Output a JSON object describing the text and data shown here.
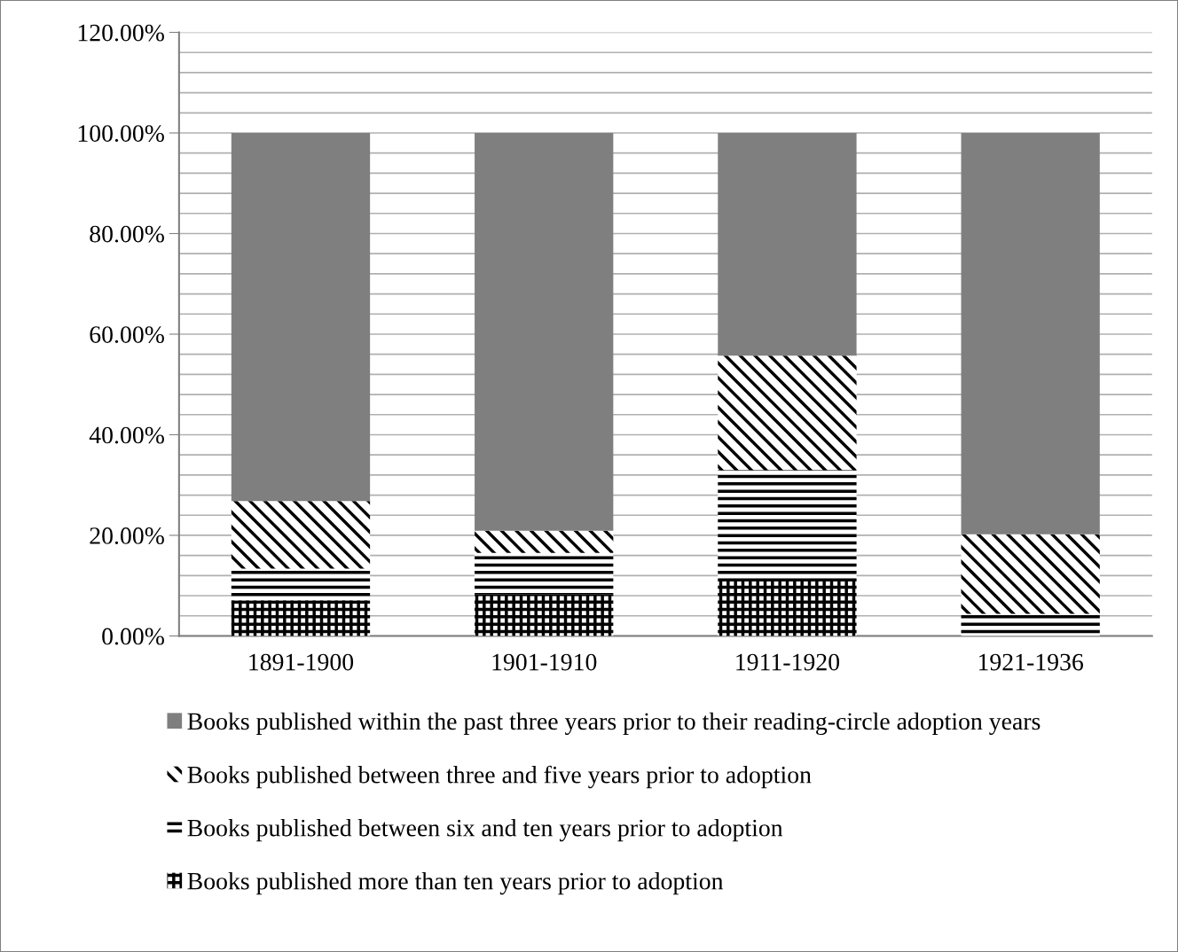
{
  "chart_data": {
    "type": "bar",
    "stacked": true,
    "categories": [
      "1891-1900",
      "1901-1910",
      "1911-1920",
      "1921-1936"
    ],
    "series": [
      {
        "name": "Books published more than ten years prior to adoption",
        "color": "#000000",
        "values": [
          7.1,
          8.3,
          11.0,
          0
        ]
      },
      {
        "name": "Books published between six and ten years prior to adoption",
        "color": "#000000",
        "values": [
          6.3,
          8.2,
          22.0,
          4.4
        ]
      },
      {
        "name": "Books published between three and five years prior to adoption",
        "color": "#000000",
        "values": [
          13.4,
          4.4,
          22.7,
          15.8
        ]
      },
      {
        "name": "Books published within the past three years prior to their reading-circle adoption years",
        "color": "#7f7f7f",
        "values": [
          73.2,
          79.1,
          44.3,
          79.8
        ]
      }
    ],
    "ylim": [
      0,
      120
    ],
    "yticks": [
      {
        "value": 0,
        "label": "0.00%"
      },
      {
        "value": 4,
        "label": null
      },
      {
        "value": 8,
        "label": null
      },
      {
        "value": 12,
        "label": null
      },
      {
        "value": 16,
        "label": null
      },
      {
        "value": 20,
        "label": "20.00%"
      },
      {
        "value": 24,
        "label": null
      },
      {
        "value": 28,
        "label": null
      },
      {
        "value": 32,
        "label": null
      },
      {
        "value": 36,
        "label": null
      },
      {
        "value": 40,
        "label": "40.00%"
      },
      {
        "value": 44,
        "label": null
      },
      {
        "value": 48,
        "label": null
      },
      {
        "value": 52,
        "label": null
      },
      {
        "value": 56,
        "label": null
      },
      {
        "value": 60,
        "label": "60.00%"
      },
      {
        "value": 64,
        "label": null
      },
      {
        "value": 68,
        "label": null
      },
      {
        "value": 72,
        "label": null
      },
      {
        "value": 76,
        "label": null
      },
      {
        "value": 80,
        "label": "80.00%"
      },
      {
        "value": 84,
        "label": null
      },
      {
        "value": 88,
        "label": null
      },
      {
        "value": 92,
        "label": null
      },
      {
        "value": 96,
        "label": null
      },
      {
        "value": 100,
        "label": "100.00%"
      },
      {
        "value": 104,
        "label": null
      },
      {
        "value": 108,
        "label": null
      },
      {
        "value": 112,
        "label": null
      },
      {
        "value": 116,
        "label": null
      },
      {
        "value": 120,
        "label": "120.00%"
      }
    ],
    "grid": "y",
    "legend": "bottom"
  }
}
